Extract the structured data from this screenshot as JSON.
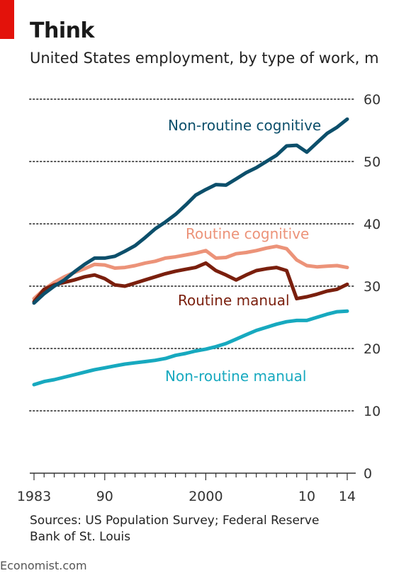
{
  "header": {
    "title": "Think",
    "subtitle": "United States employment, by type of work, m"
  },
  "footer": {
    "source": "Sources: US Population Survey; Federal Reserve Bank of St. Louis",
    "brand": "Economist.com"
  },
  "colors": {
    "accent": "#e3120b",
    "non_routine_cognitive": "#0c4f6b",
    "routine_cognitive": "#ec9379",
    "routine_manual": "#7a1f0d",
    "non_routine_manual": "#17a9bf",
    "grid": "#555555"
  },
  "chart_data": {
    "type": "line",
    "title": "Think",
    "subtitle": "United States employment, by type of work, m",
    "xlim": [
      1983,
      2014
    ],
    "ylim": [
      0,
      60
    ],
    "yticks": [
      0,
      10,
      20,
      30,
      40,
      50,
      60
    ],
    "xtick_labels": [
      {
        "x": 1983,
        "label": "1983"
      },
      {
        "x": 1990,
        "label": "90"
      },
      {
        "x": 2000,
        "label": "2000"
      },
      {
        "x": 2010,
        "label": "10"
      },
      {
        "x": 2014,
        "label": "14"
      }
    ],
    "grid": "horizontal dotted",
    "legend": "inline labels",
    "series": [
      {
        "name": "Non-routine cognitive",
        "x": [
          1983,
          1984,
          1985,
          1986,
          1987,
          1988,
          1989,
          1990,
          1991,
          1992,
          1993,
          1994,
          1995,
          1996,
          1997,
          1998,
          1999,
          2000,
          2001,
          2002,
          2003,
          2004,
          2005,
          2006,
          2007,
          2008,
          2009,
          2010,
          2011,
          2012,
          2013,
          2014
        ],
        "values": [
          27.3,
          28.8,
          30.0,
          31.0,
          32.3,
          33.5,
          34.5,
          34.5,
          34.8,
          35.6,
          36.5,
          37.8,
          39.2,
          40.3,
          41.5,
          43.0,
          44.6,
          45.5,
          46.3,
          46.2,
          47.2,
          48.2,
          49.0,
          50.0,
          51.0,
          52.5,
          52.6,
          51.5,
          53.0,
          54.5,
          55.5,
          56.8
        ]
      },
      {
        "name": "Routine cognitive",
        "x": [
          1983,
          1984,
          1985,
          1986,
          1987,
          1988,
          1989,
          1990,
          1991,
          1992,
          1993,
          1994,
          1995,
          1996,
          1997,
          1998,
          1999,
          2000,
          2001,
          2002,
          2003,
          2004,
          2005,
          2006,
          2007,
          2008,
          2009,
          2010,
          2011,
          2012,
          2013,
          2014
        ],
        "values": [
          28.0,
          29.5,
          30.6,
          31.5,
          32.2,
          32.8,
          33.5,
          33.4,
          32.9,
          33.0,
          33.3,
          33.7,
          34.0,
          34.5,
          34.7,
          35.0,
          35.3,
          35.7,
          34.5,
          34.6,
          35.2,
          35.4,
          35.7,
          36.1,
          36.4,
          36.0,
          34.2,
          33.3,
          33.1,
          33.2,
          33.3,
          33.0
        ]
      },
      {
        "name": "Routine manual",
        "x": [
          1983,
          1984,
          1985,
          1986,
          1987,
          1988,
          1989,
          1990,
          1991,
          1992,
          1993,
          1994,
          1995,
          1996,
          1997,
          1998,
          1999,
          2000,
          2001,
          2002,
          2003,
          2004,
          2005,
          2006,
          2007,
          2008,
          2009,
          2010,
          2011,
          2012,
          2013,
          2014
        ],
        "values": [
          27.5,
          29.5,
          30.2,
          30.6,
          31.0,
          31.5,
          31.8,
          31.2,
          30.2,
          30.0,
          30.5,
          31.0,
          31.5,
          32.0,
          32.4,
          32.7,
          33.0,
          33.7,
          32.5,
          31.8,
          31.0,
          31.8,
          32.5,
          32.8,
          33.0,
          32.5,
          28.0,
          28.3,
          28.7,
          29.2,
          29.5,
          30.3
        ]
      },
      {
        "name": "Non-routine manual",
        "x": [
          1983,
          1984,
          1985,
          1986,
          1987,
          1988,
          1989,
          1990,
          1991,
          1992,
          1993,
          1994,
          1995,
          1996,
          1997,
          1998,
          1999,
          2000,
          2001,
          2002,
          2003,
          2004,
          2005,
          2006,
          2007,
          2008,
          2009,
          2010,
          2011,
          2012,
          2013,
          2014
        ],
        "values": [
          14.2,
          14.7,
          15.0,
          15.4,
          15.8,
          16.2,
          16.6,
          16.9,
          17.2,
          17.5,
          17.7,
          17.9,
          18.1,
          18.4,
          18.9,
          19.2,
          19.6,
          19.9,
          20.3,
          20.8,
          21.5,
          22.2,
          22.9,
          23.4,
          23.9,
          24.3,
          24.5,
          24.5,
          25.0,
          25.5,
          25.9,
          26.0
        ]
      }
    ],
    "labels": [
      {
        "series": "Non-routine cognitive",
        "text": "Non-routine cognitive"
      },
      {
        "series": "Routine cognitive",
        "text": "Routine cognitive"
      },
      {
        "series": "Routine manual",
        "text": "Routine manual"
      },
      {
        "series": "Non-routine manual",
        "text": "Non-routine manual"
      }
    ]
  }
}
